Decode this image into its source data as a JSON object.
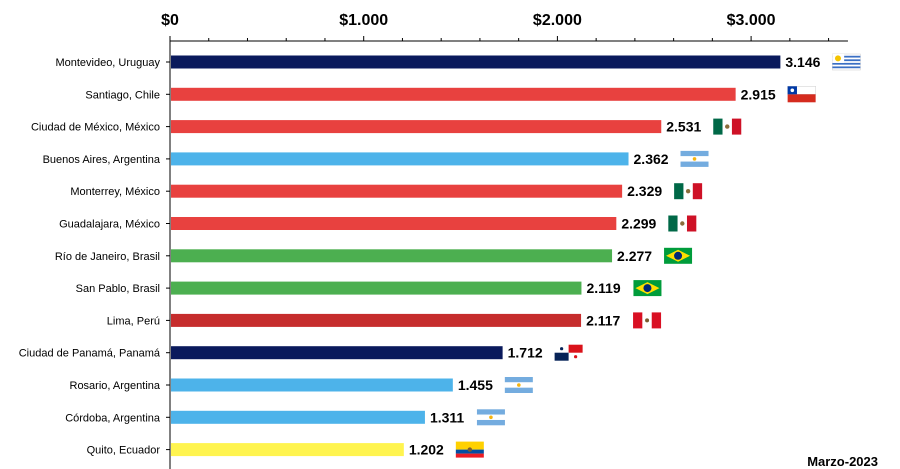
{
  "chart_data": {
    "type": "bar",
    "orientation": "horizontal",
    "title": "",
    "xlabel": "",
    "ylabel": "",
    "xlim": [
      0,
      3500
    ],
    "x_ticks": [
      {
        "value": 0,
        "label": "$0"
      },
      {
        "value": 1000,
        "label": "$1.000"
      },
      {
        "value": 2000,
        "label": "$2.000"
      },
      {
        "value": 3000,
        "label": "$3.000"
      }
    ],
    "grid": false,
    "bars": [
      {
        "category": "Montevideo, Uruguay",
        "value": 3146,
        "label": "3.146",
        "color": "#0a1a5c",
        "flag": "uruguay-flag"
      },
      {
        "category": "Santiago, Chile",
        "value": 2915,
        "label": "2.915",
        "color": "#e8413f",
        "flag": "chile-flag"
      },
      {
        "category": "Ciudad de México, México",
        "value": 2531,
        "label": "2.531",
        "color": "#e8413f",
        "flag": "mexico-flag"
      },
      {
        "category": "Buenos Aires, Argentina",
        "value": 2362,
        "label": "2.362",
        "color": "#4db3ea",
        "flag": "argentina-flag"
      },
      {
        "category": "Monterrey, México",
        "value": 2329,
        "label": "2.329",
        "color": "#e8413f",
        "flag": "mexico-flag"
      },
      {
        "category": "Guadalajara, México",
        "value": 2299,
        "label": "2.299",
        "color": "#e8413f",
        "flag": "mexico-flag"
      },
      {
        "category": "Río de Janeiro, Brasil",
        "value": 2277,
        "label": "2.277",
        "color": "#4caf50",
        "flag": "brazil-flag"
      },
      {
        "category": "San Pablo, Brasil",
        "value": 2119,
        "label": "2.119",
        "color": "#4caf50",
        "flag": "brazil-flag"
      },
      {
        "category": "Lima, Perú",
        "value": 2117,
        "label": "2.117",
        "color": "#c62d2d",
        "flag": "peru-flag"
      },
      {
        "category": "Ciudad de Panamá, Panamá",
        "value": 1712,
        "label": "1.712",
        "color": "#0a1a5c",
        "flag": "panama-flag"
      },
      {
        "category": "Rosario, Argentina",
        "value": 1455,
        "label": "1.455",
        "color": "#4db3ea",
        "flag": "argentina-flag"
      },
      {
        "category": "Córdoba, Argentina",
        "value": 1311,
        "label": "1.311",
        "color": "#4db3ea",
        "flag": "argentina-flag"
      },
      {
        "category": "Quito, Ecuador",
        "value": 1202,
        "label": "1.202",
        "color": "#fff44f",
        "flag": "ecuador-flag"
      }
    ],
    "footnote": "Marzo-2023"
  }
}
